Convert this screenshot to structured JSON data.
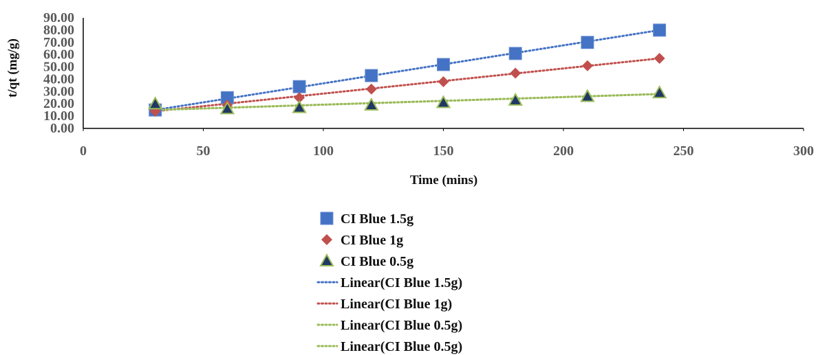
{
  "chart_data": {
    "type": "scatter",
    "xlabel": "Time (mins)",
    "ylabel": "t/qt (mg/g)",
    "xlim": [
      0,
      300
    ],
    "ylim": [
      0,
      90
    ],
    "x_ticks": [
      "0",
      "50",
      "100",
      "150",
      "200",
      "250",
      "300"
    ],
    "y_ticks": [
      "0.00",
      "10.00",
      "20.00",
      "30.00",
      "40.00",
      "50.00",
      "60.00",
      "70.00",
      "80.00",
      "90.00"
    ],
    "grid": false,
    "legend_position": "bottom",
    "series": [
      {
        "name": "CI Blue 1.5g",
        "marker": "square",
        "color": "#4472C4",
        "x": [
          30,
          60,
          90,
          120,
          150,
          180,
          210,
          240
        ],
        "y": [
          15.0,
          25.0,
          34.0,
          43.0,
          52.0,
          61.0,
          70.0,
          80.0
        ]
      },
      {
        "name": "CI Blue 1g",
        "marker": "diamond",
        "color": "#C0504D",
        "x": [
          30,
          60,
          90,
          120,
          150,
          180,
          210,
          240
        ],
        "y": [
          14.0,
          19.0,
          25.0,
          32.0,
          38.0,
          45.0,
          51.0,
          57.0
        ]
      },
      {
        "name": "CI Blue 0.5g",
        "marker": "triangle",
        "color": "#1F3864",
        "edge_color": "#9BBB59",
        "x": [
          30,
          60,
          90,
          120,
          150,
          180,
          210,
          240
        ],
        "y": [
          20.0,
          16.0,
          17.0,
          19.0,
          21.0,
          23.0,
          26.0,
          29.0
        ]
      }
    ],
    "trendlines": [
      {
        "name": "Linear(CI Blue 1.5g)",
        "color": "#4472C4",
        "style": "dotted",
        "x": [
          30,
          240
        ],
        "y": [
          15.0,
          80.0
        ]
      },
      {
        "name": "Linear(CI Blue 1g)",
        "color": "#C0504D",
        "style": "dotted",
        "x": [
          30,
          240
        ],
        "y": [
          14.0,
          57.0
        ]
      },
      {
        "name": "Linear(CI Blue 0.5g)",
        "color": "#9BBB59",
        "style": "dotted",
        "x": [
          30,
          240
        ],
        "y": [
          15.0,
          28.0
        ]
      },
      {
        "name": "Linear(CI Blue 0.5g)",
        "color": "#9BBB59",
        "style": "dotted",
        "x": [
          30,
          240
        ],
        "y": [
          15.0,
          28.0
        ]
      }
    ]
  }
}
